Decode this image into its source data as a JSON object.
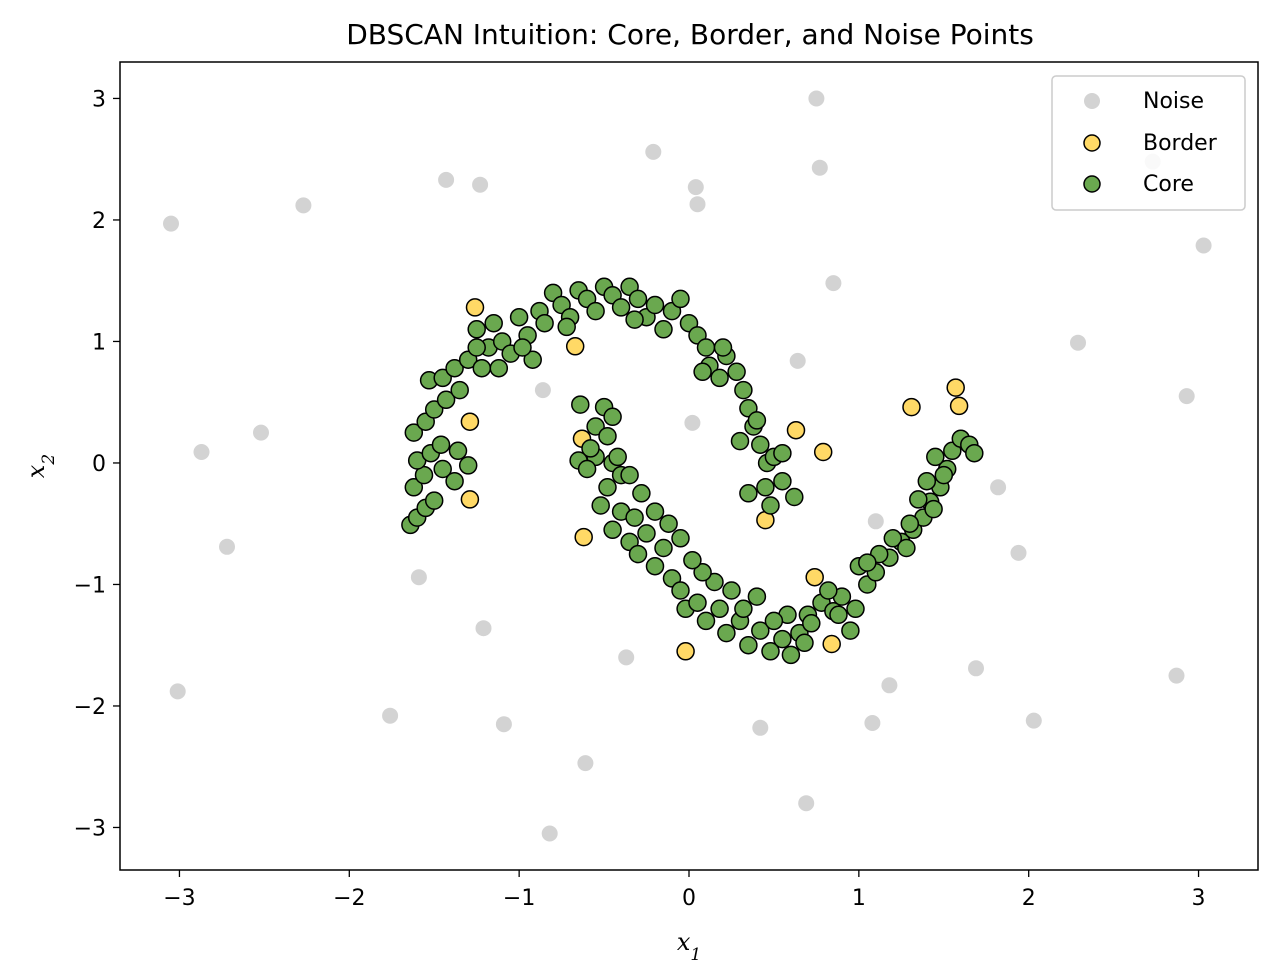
{
  "chart_data": {
    "type": "scatter",
    "title": "DBSCAN Intuition: Core, Border, and Noise Points",
    "xlabel": "x",
    "xlabel_sub": "1",
    "ylabel": "x",
    "ylabel_sub": "2",
    "xlim": [
      -3.35,
      3.35
    ],
    "ylim": [
      -3.35,
      3.3
    ],
    "xticks": [
      -3,
      -2,
      -1,
      0,
      1,
      2,
      3
    ],
    "yticks": [
      -3,
      -2,
      -1,
      0,
      1,
      2,
      3
    ],
    "xtick_labels": [
      "−3",
      "−2",
      "−1",
      "0",
      "1",
      "2",
      "3"
    ],
    "ytick_labels": [
      "−3",
      "−2",
      "−1",
      "0",
      "1",
      "2",
      "3"
    ],
    "grid": false,
    "legend_position": "top-right",
    "series": [
      {
        "name": "Noise",
        "color": "#d3d3d3",
        "edge": "none",
        "points": [
          [
            0.75,
            3.0
          ],
          [
            -0.21,
            2.56
          ],
          [
            -1.43,
            2.33
          ],
          [
            -1.23,
            2.29
          ],
          [
            0.04,
            2.27
          ],
          [
            0.77,
            2.43
          ],
          [
            -2.27,
            2.12
          ],
          [
            0.05,
            2.13
          ],
          [
            -3.05,
            1.97
          ],
          [
            2.73,
            2.48
          ],
          [
            3.03,
            1.79
          ],
          [
            0.85,
            1.48
          ],
          [
            2.29,
            0.99
          ],
          [
            0.64,
            0.84
          ],
          [
            -0.86,
            0.6
          ],
          [
            2.93,
            0.55
          ],
          [
            0.02,
            0.33
          ],
          [
            -2.52,
            0.25
          ],
          [
            -2.87,
            0.09
          ],
          [
            1.82,
            -0.2
          ],
          [
            1.1,
            -0.48
          ],
          [
            -2.72,
            -0.69
          ],
          [
            1.94,
            -0.74
          ],
          [
            -1.59,
            -0.94
          ],
          [
            -1.21,
            -1.36
          ],
          [
            -0.37,
            -1.6
          ],
          [
            1.69,
            -1.69
          ],
          [
            2.87,
            -1.75
          ],
          [
            1.18,
            -1.83
          ],
          [
            -3.01,
            -1.88
          ],
          [
            -1.76,
            -2.08
          ],
          [
            -1.09,
            -2.15
          ],
          [
            2.03,
            -2.12
          ],
          [
            1.08,
            -2.14
          ],
          [
            0.42,
            -2.18
          ],
          [
            -0.61,
            -2.47
          ],
          [
            0.69,
            -2.8
          ],
          [
            -0.82,
            -3.05
          ]
        ]
      },
      {
        "name": "Border",
        "color": "#ffd966",
        "edge": "#000000",
        "points": [
          [
            -1.26,
            1.28
          ],
          [
            -0.67,
            0.96
          ],
          [
            -1.29,
            0.34
          ],
          [
            -0.63,
            0.2
          ],
          [
            -1.29,
            -0.3
          ],
          [
            -0.62,
            -0.61
          ],
          [
            -0.02,
            -1.55
          ],
          [
            0.74,
            -0.94
          ],
          [
            0.84,
            -1.49
          ],
          [
            0.63,
            0.27
          ],
          [
            0.79,
            0.09
          ],
          [
            0.45,
            -0.47
          ],
          [
            1.31,
            0.46
          ],
          [
            1.57,
            0.62
          ],
          [
            1.59,
            0.47
          ]
        ]
      },
      {
        "name": "Core",
        "color": "#6aa84f",
        "edge": "#000000",
        "points": [
          [
            -1.64,
            -0.51
          ],
          [
            -1.6,
            -0.45
          ],
          [
            -1.55,
            -0.37
          ],
          [
            -1.5,
            -0.31
          ],
          [
            -1.62,
            -0.2
          ],
          [
            -1.56,
            -0.1
          ],
          [
            -1.6,
            0.02
          ],
          [
            -1.52,
            0.08
          ],
          [
            -1.45,
            -0.05
          ],
          [
            -1.38,
            -0.15
          ],
          [
            -1.46,
            0.15
          ],
          [
            -1.36,
            0.1
          ],
          [
            -1.3,
            -0.02
          ],
          [
            -1.62,
            0.25
          ],
          [
            -1.55,
            0.34
          ],
          [
            -1.5,
            0.44
          ],
          [
            -1.43,
            0.52
          ],
          [
            -1.35,
            0.6
          ],
          [
            -1.53,
            0.68
          ],
          [
            -1.45,
            0.7
          ],
          [
            -1.38,
            0.78
          ],
          [
            -1.3,
            0.85
          ],
          [
            -1.22,
            0.78
          ],
          [
            -1.18,
            0.95
          ],
          [
            -1.1,
            1.0
          ],
          [
            -1.25,
            1.1
          ],
          [
            -1.15,
            1.15
          ],
          [
            -1.05,
            0.9
          ],
          [
            -1.0,
            1.2
          ],
          [
            -0.95,
            1.05
          ],
          [
            -0.92,
            0.85
          ],
          [
            -0.88,
            1.25
          ],
          [
            -0.85,
            1.15
          ],
          [
            -0.8,
            1.4
          ],
          [
            -0.75,
            1.3
          ],
          [
            -0.7,
            1.2
          ],
          [
            -0.65,
            1.42
          ],
          [
            -0.6,
            1.35
          ],
          [
            -0.55,
            1.25
          ],
          [
            -0.5,
            1.45
          ],
          [
            -0.45,
            1.38
          ],
          [
            -0.4,
            1.28
          ],
          [
            -0.35,
            1.45
          ],
          [
            -0.3,
            1.35
          ],
          [
            -0.25,
            1.2
          ],
          [
            -0.2,
            1.3
          ],
          [
            -0.15,
            1.1
          ],
          [
            -0.1,
            1.25
          ],
          [
            -0.05,
            1.35
          ],
          [
            0.0,
            1.15
          ],
          [
            0.05,
            1.05
          ],
          [
            0.1,
            0.95
          ],
          [
            0.12,
            0.8
          ],
          [
            0.18,
            0.7
          ],
          [
            0.22,
            0.88
          ],
          [
            0.28,
            0.75
          ],
          [
            0.32,
            0.6
          ],
          [
            0.35,
            0.45
          ],
          [
            0.38,
            0.3
          ],
          [
            0.42,
            0.15
          ],
          [
            0.46,
            0.0
          ],
          [
            0.5,
            0.05
          ],
          [
            0.55,
            0.08
          ],
          [
            0.4,
            0.35
          ],
          [
            0.3,
            0.18
          ],
          [
            0.45,
            -0.2
          ],
          [
            0.55,
            -0.15
          ],
          [
            0.62,
            -0.28
          ],
          [
            0.48,
            -0.35
          ],
          [
            0.35,
            -0.25
          ],
          [
            -0.64,
            0.48
          ],
          [
            -0.5,
            0.46
          ],
          [
            -0.45,
            0.38
          ],
          [
            -0.55,
            0.3
          ],
          [
            -0.48,
            0.22
          ],
          [
            -0.65,
            0.02
          ],
          [
            -0.55,
            0.05
          ],
          [
            -0.45,
            0.0
          ],
          [
            -0.4,
            -0.1
          ],
          [
            -0.48,
            -0.2
          ],
          [
            -0.52,
            -0.35
          ],
          [
            -0.4,
            -0.4
          ],
          [
            -0.32,
            -0.45
          ],
          [
            -0.45,
            -0.55
          ],
          [
            -0.35,
            -0.65
          ],
          [
            -0.25,
            -0.58
          ],
          [
            -0.3,
            -0.75
          ],
          [
            -0.2,
            -0.85
          ],
          [
            -0.15,
            -0.7
          ],
          [
            -0.1,
            -0.95
          ],
          [
            -0.05,
            -1.05
          ],
          [
            -0.02,
            -1.2
          ],
          [
            0.05,
            -1.15
          ],
          [
            0.1,
            -1.3
          ],
          [
            0.18,
            -1.2
          ],
          [
            0.22,
            -1.4
          ],
          [
            0.3,
            -1.3
          ],
          [
            0.35,
            -1.5
          ],
          [
            0.42,
            -1.38
          ],
          [
            0.48,
            -1.55
          ],
          [
            0.55,
            -1.45
          ],
          [
            0.6,
            -1.58
          ],
          [
            0.65,
            -1.4
          ],
          [
            0.7,
            -1.25
          ],
          [
            0.78,
            -1.15
          ],
          [
            0.85,
            -1.22
          ],
          [
            0.9,
            -1.1
          ],
          [
            0.98,
            -1.2
          ],
          [
            1.05,
            -1.0
          ],
          [
            1.1,
            -0.9
          ],
          [
            1.18,
            -0.78
          ],
          [
            1.25,
            -0.65
          ],
          [
            1.32,
            -0.55
          ],
          [
            1.38,
            -0.45
          ],
          [
            1.42,
            -0.32
          ],
          [
            1.48,
            -0.2
          ],
          [
            1.52,
            -0.05
          ],
          [
            1.55,
            0.1
          ],
          [
            1.6,
            0.2
          ],
          [
            1.65,
            0.15
          ],
          [
            1.68,
            0.08
          ],
          [
            1.4,
            -0.15
          ],
          [
            1.35,
            -0.3
          ],
          [
            1.3,
            -0.5
          ],
          [
            1.2,
            -0.62
          ],
          [
            1.12,
            -0.75
          ],
          [
            1.0,
            -0.85
          ],
          [
            0.95,
            -1.38
          ],
          [
            0.82,
            -1.05
          ],
          [
            0.72,
            -1.32
          ],
          [
            0.58,
            -1.25
          ],
          [
            0.4,
            -1.1
          ],
          [
            0.32,
            -1.2
          ],
          [
            0.25,
            -1.05
          ],
          [
            0.15,
            -0.98
          ],
          [
            0.08,
            -0.9
          ],
          [
            0.02,
            -0.8
          ],
          [
            -0.05,
            -0.62
          ],
          [
            -0.12,
            -0.5
          ],
          [
            -0.2,
            -0.4
          ],
          [
            -0.28,
            -0.25
          ],
          [
            -0.35,
            -0.1
          ],
          [
            -0.42,
            0.05
          ],
          [
            -0.6,
            -0.05
          ],
          [
            -0.58,
            0.12
          ],
          [
            -1.12,
            0.78
          ],
          [
            -1.25,
            0.95
          ],
          [
            -0.98,
            0.95
          ],
          [
            -0.72,
            1.12
          ],
          [
            -0.32,
            1.18
          ],
          [
            0.2,
            0.95
          ],
          [
            0.08,
            0.75
          ],
          [
            1.45,
            0.05
          ],
          [
            1.5,
            -0.1
          ],
          [
            1.44,
            -0.38
          ],
          [
            1.28,
            -0.7
          ],
          [
            1.05,
            -0.82
          ],
          [
            0.88,
            -1.25
          ],
          [
            0.68,
            -1.48
          ],
          [
            0.5,
            -1.3
          ]
        ]
      }
    ]
  }
}
